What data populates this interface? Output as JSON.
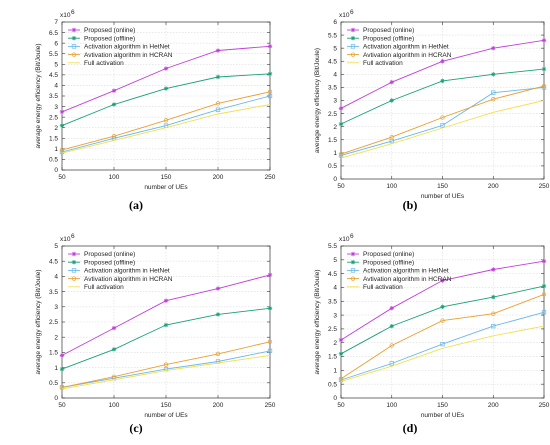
{
  "chart_data": [
    {
      "type": "line",
      "caption": "(a)",
      "xlabel": "number of UEs",
      "ylabel": "average energy efficiency (Bit/Joule)",
      "multiplier": "x10",
      "exponent": "6",
      "x": [
        50,
        100,
        150,
        200,
        250
      ],
      "ylim": [
        0,
        7
      ],
      "yticks": [
        "0",
        "0.5",
        "1",
        "1.5",
        "2",
        "2.5",
        "3",
        "3.5",
        "4",
        "4.5",
        "5",
        "5.5",
        "6",
        "6.5",
        "7"
      ],
      "xticks": [
        "50",
        "100",
        "150",
        "200",
        "250"
      ],
      "series": [
        {
          "name": "Proposed (online)",
          "color": "#c040d8",
          "marker": "star",
          "values": [
            2.75,
            3.75,
            4.8,
            5.65,
            5.85
          ]
        },
        {
          "name": "Proposed (offline)",
          "color": "#1aa07a",
          "marker": "star",
          "values": [
            2.1,
            3.1,
            3.85,
            4.4,
            4.55
          ]
        },
        {
          "name": "Activation algorithm in HetNet",
          "color": "#6ab8e8",
          "marker": "square",
          "values": [
            0.85,
            1.5,
            2.1,
            2.85,
            3.5
          ]
        },
        {
          "name": "Avtivation algorithm in HCRAN",
          "color": "#e8a030",
          "marker": "circle",
          "values": [
            0.95,
            1.6,
            2.35,
            3.15,
            3.7
          ]
        },
        {
          "name": "Full activation",
          "color": "#f2e050",
          "marker": "none",
          "values": [
            0.8,
            1.4,
            2.0,
            2.65,
            3.1
          ]
        }
      ]
    },
    {
      "type": "line",
      "caption": "(b)",
      "xlabel": "number of UEs",
      "ylabel": "average energy efficiency (Bit/Joule)",
      "multiplier": "x10",
      "exponent": "6",
      "x": [
        50,
        100,
        150,
        200,
        250
      ],
      "ylim": [
        0,
        6
      ],
      "yticks": [
        "0",
        "0.5",
        "1",
        "1.5",
        "2",
        "2.5",
        "3",
        "3.5",
        "4",
        "4.5",
        "5",
        "5.5",
        "6"
      ],
      "xticks": [
        "50",
        "100",
        "150",
        "200",
        "250"
      ],
      "series": [
        {
          "name": "Proposed (online)",
          "color": "#c040d8",
          "marker": "star",
          "values": [
            2.7,
            3.7,
            4.5,
            5.0,
            5.3
          ]
        },
        {
          "name": "Proposed (offline)",
          "color": "#1aa07a",
          "marker": "star",
          "values": [
            2.1,
            3.0,
            3.75,
            4.0,
            4.2
          ]
        },
        {
          "name": "Activation algorithm in HetNet",
          "color": "#6ab8e8",
          "marker": "square",
          "values": [
            0.9,
            1.45,
            2.05,
            3.3,
            3.5
          ]
        },
        {
          "name": "Avtivation algorithm in HCRAN",
          "color": "#e8a030",
          "marker": "circle",
          "values": [
            0.95,
            1.6,
            2.35,
            3.05,
            3.55
          ]
        },
        {
          "name": "Full activation",
          "color": "#f2e050",
          "marker": "none",
          "values": [
            0.8,
            1.35,
            1.95,
            2.55,
            3.0
          ]
        }
      ]
    },
    {
      "type": "line",
      "caption": "(c)",
      "xlabel": "number of UEs",
      "ylabel": "average energy efficiency (Bit/Joule)",
      "multiplier": "x10",
      "exponent": "6",
      "x": [
        50,
        100,
        150,
        200,
        250
      ],
      "ylim": [
        0,
        5
      ],
      "yticks": [
        "0",
        "0.5",
        "1",
        "1.5",
        "2",
        "2.5",
        "3",
        "3.5",
        "4",
        "4.5",
        "5"
      ],
      "xticks": [
        "50",
        "100",
        "150",
        "200",
        "250"
      ],
      "series": [
        {
          "name": "Proposed (online)",
          "color": "#c040d8",
          "marker": "star",
          "values": [
            1.4,
            2.3,
            3.2,
            3.6,
            4.05
          ]
        },
        {
          "name": "Proposed (offline)",
          "color": "#1aa07a",
          "marker": "star",
          "values": [
            0.95,
            1.6,
            2.4,
            2.75,
            2.95
          ]
        },
        {
          "name": "Activation algorithm in HetNet",
          "color": "#6ab8e8",
          "marker": "square",
          "values": [
            0.35,
            0.65,
            0.95,
            1.2,
            1.55
          ]
        },
        {
          "name": "Avtivation algorithm in HCRAN",
          "color": "#e8a030",
          "marker": "circle",
          "values": [
            0.35,
            0.7,
            1.1,
            1.45,
            1.85
          ]
        },
        {
          "name": "Full activation",
          "color": "#f2e050",
          "marker": "none",
          "values": [
            0.3,
            0.6,
            0.9,
            1.15,
            1.4
          ]
        }
      ]
    },
    {
      "type": "line",
      "caption": "(d)",
      "xlabel": "number of UEs",
      "ylabel": "average energy efficiency (Bit/Joule)",
      "multiplier": "x10",
      "exponent": "6",
      "x": [
        50,
        100,
        150,
        200,
        250
      ],
      "ylim": [
        0,
        5.5
      ],
      "yticks": [
        "0",
        "0.5",
        "1",
        "1.5",
        "2",
        "2.5",
        "3",
        "3.5",
        "4",
        "4.5",
        "5",
        "5.5"
      ],
      "xticks": [
        "50",
        "100",
        "150",
        "200",
        "250"
      ],
      "series": [
        {
          "name": "Proposed (online)",
          "color": "#c040d8",
          "marker": "star",
          "values": [
            2.1,
            3.25,
            4.25,
            4.65,
            4.95
          ]
        },
        {
          "name": "Proposed (offline)",
          "color": "#1aa07a",
          "marker": "star",
          "values": [
            1.6,
            2.6,
            3.3,
            3.65,
            4.05
          ]
        },
        {
          "name": "Activation algorithm in HetNet",
          "color": "#6ab8e8",
          "marker": "square",
          "values": [
            0.65,
            1.25,
            1.95,
            2.6,
            3.1
          ]
        },
        {
          "name": "Avtivation algorithm in HCRAN",
          "color": "#e8a030",
          "marker": "circle",
          "values": [
            0.7,
            1.9,
            2.8,
            3.05,
            3.75
          ]
        },
        {
          "name": "Full activation",
          "color": "#f2e050",
          "marker": "none",
          "values": [
            0.6,
            1.15,
            1.8,
            2.25,
            2.6
          ]
        }
      ]
    }
  ]
}
